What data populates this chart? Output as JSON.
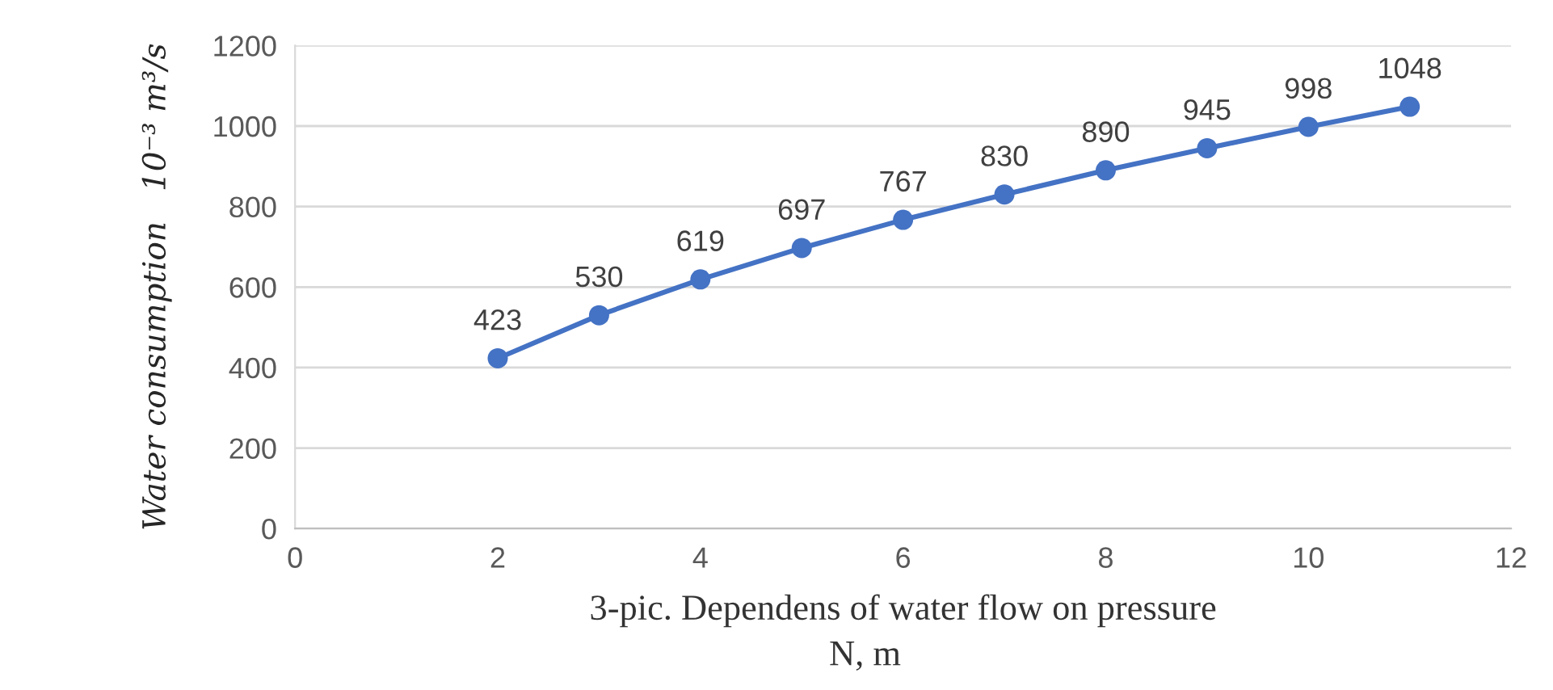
{
  "chart_data": {
    "type": "line",
    "xlabel": "N, m",
    "ylabel": "Water consumption   10⁻³ m³/s",
    "annotations": [
      "3-pic. Dependens of water flow on pressure"
    ],
    "x": [
      2,
      3,
      4,
      5,
      6,
      7,
      8,
      9,
      10,
      11
    ],
    "series": [
      {
        "color": "#4472c4",
        "values": [
          423,
          530,
          619,
          697,
          767,
          830,
          890,
          945,
          998,
          1048
        ]
      }
    ],
    "xlim": [
      0,
      12
    ],
    "xticks": [
      0,
      2,
      4,
      6,
      8,
      10,
      12
    ],
    "ylim": [
      0,
      1200
    ],
    "yticks": [
      0,
      200,
      400,
      600,
      800,
      1000,
      1200
    ],
    "grid": "y",
    "marker": "circle",
    "line_style": "solid",
    "data_labels": true
  }
}
